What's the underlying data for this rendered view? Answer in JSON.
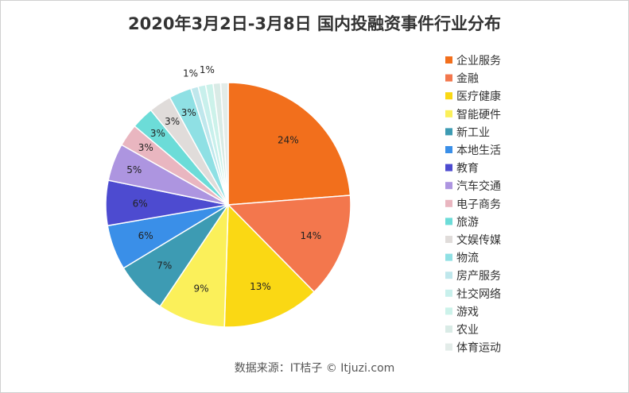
{
  "chart_data": {
    "type": "pie",
    "title": "2020年3月2日-3月8日 国内投融资事件行业分布",
    "categories": [
      "企业服务",
      "金融",
      "医疗健康",
      "智能硬件",
      "新工业",
      "本地生活",
      "教育",
      "汽车交通",
      "电子商务",
      "旅游",
      "文娱传媒",
      "物流",
      "房产服务",
      "社交网络",
      "游戏",
      "农业",
      "体育运动"
    ],
    "values": [
      24,
      14,
      13,
      9,
      7,
      6,
      6,
      5,
      3,
      3,
      3,
      3,
      1,
      1,
      1,
      1,
      1
    ],
    "value_labels": [
      "24%",
      "14%",
      "13%",
      "9%",
      "7%",
      "6%",
      "6%",
      "5%",
      "3%",
      "3%",
      "3%",
      "3%",
      "1%",
      "",
      "1%",
      "",
      ""
    ],
    "colors": [
      "#f26f1c",
      "#f3774d",
      "#fad814",
      "#fbf05a",
      "#3d9bb3",
      "#3a8fe8",
      "#4d4bd0",
      "#ad95e0",
      "#e9b6c0",
      "#6cdcd8",
      "#e0dcda",
      "#8fe0e4",
      "#bfe7ec",
      "#c8f0ec",
      "#ccf2ea",
      "#d9ebe6",
      "#e3ece9"
    ],
    "legend_position": "right"
  },
  "source_text": "数据来源：IT桔子 © Itjuzi.com"
}
